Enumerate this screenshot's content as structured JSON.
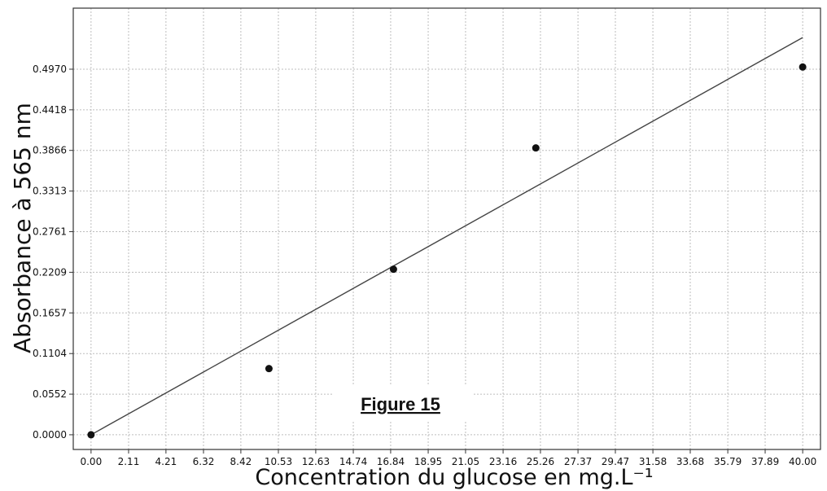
{
  "chart_data": {
    "type": "scatter",
    "title": "",
    "xlabel": "Concentration du glucose en mg.L⁻¹",
    "ylabel": "Absorbance à 565 nm",
    "xlim": [
      -1,
      41
    ],
    "ylim": [
      -0.02,
      0.58
    ],
    "x_ticks": [
      "0.00",
      "2.11",
      "4.21",
      "6.32",
      "8.42",
      "10.53",
      "12.63",
      "14.74",
      "16.84",
      "18.95",
      "21.05",
      "23.16",
      "25.26",
      "27.37",
      "29.47",
      "31.58",
      "33.68",
      "35.79",
      "37.89",
      "40.00"
    ],
    "y_ticks": [
      "0.0000",
      "0.0552",
      "0.1104",
      "0.1657",
      "0.2209",
      "0.2761",
      "0.3313",
      "0.3866",
      "0.4418",
      "0.4970"
    ],
    "grid": true,
    "series": [
      {
        "kind": "points",
        "x": [
          0,
          10,
          17,
          25,
          40
        ],
        "y": [
          0.0,
          0.09,
          0.225,
          0.39,
          0.5
        ]
      },
      {
        "kind": "fit-line",
        "x": [
          0,
          40
        ],
        "y": [
          0.0,
          0.54
        ]
      }
    ],
    "annotation": "Figure 15"
  }
}
